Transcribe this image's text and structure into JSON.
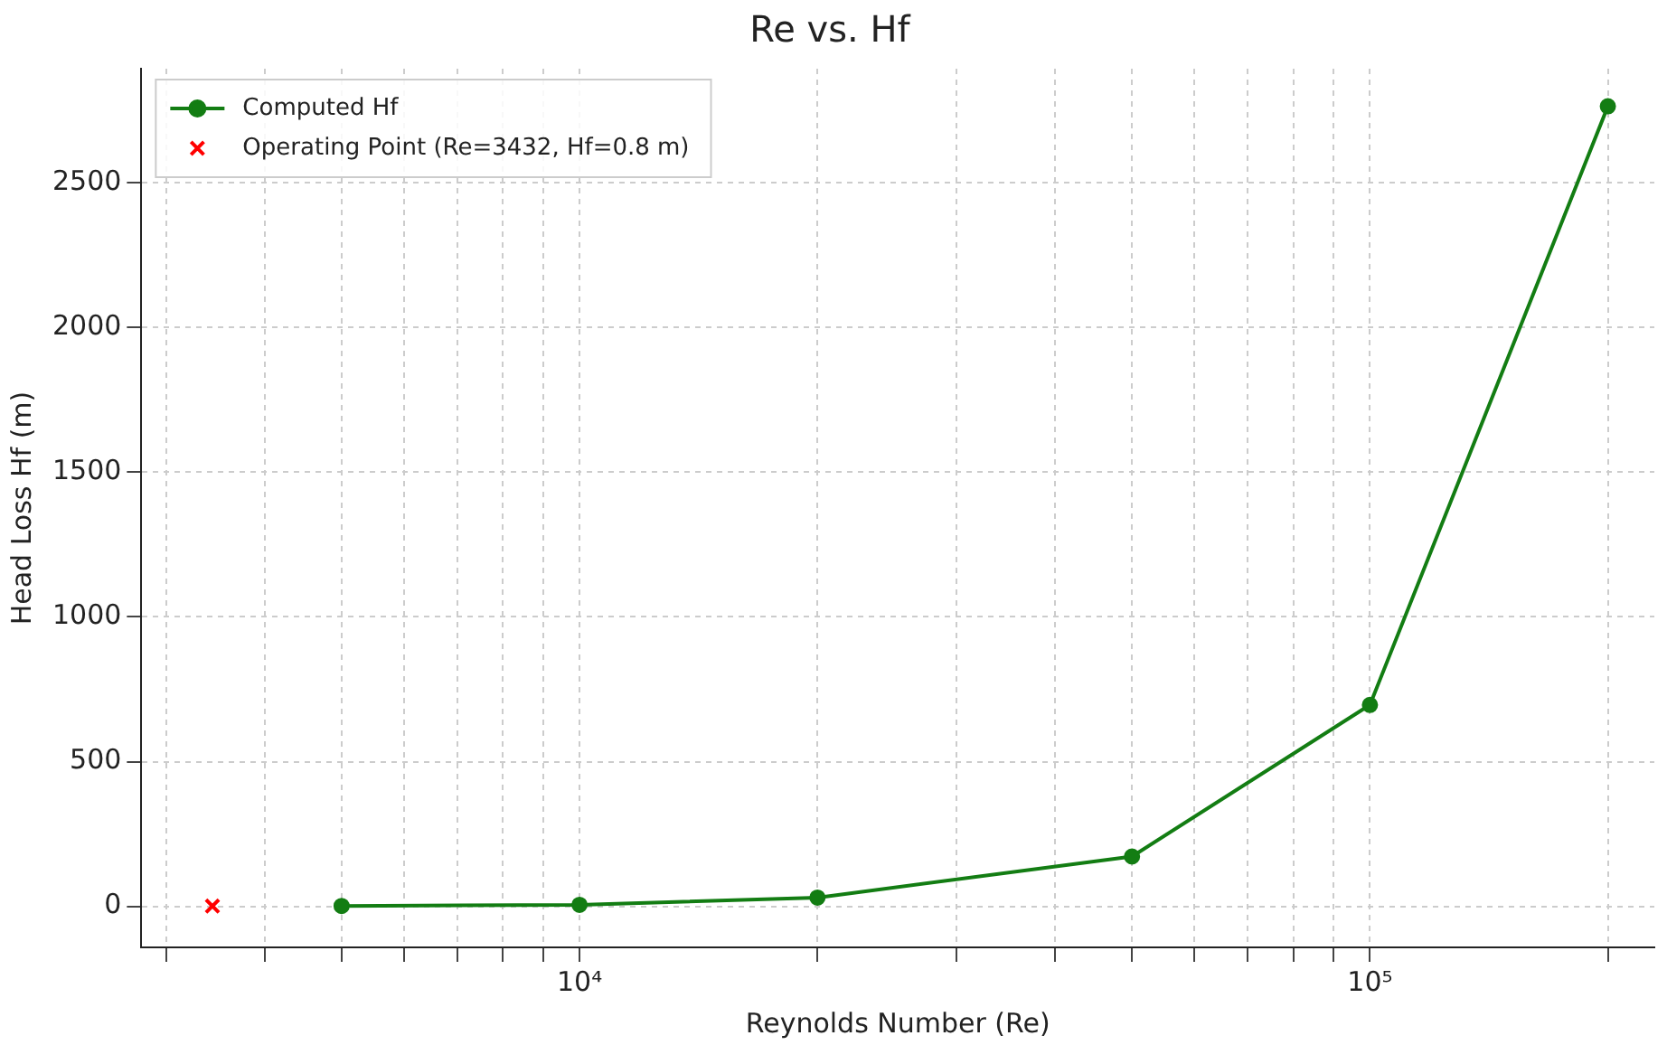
{
  "chart_data": {
    "type": "line",
    "title": "Re vs. Hf",
    "xlabel": "Reynolds Number (Re)",
    "ylabel": "Head Loss Hf (m)",
    "log": "x",
    "xlim": [
      2790,
      229000
    ],
    "xticks": [
      {
        "value": 3000,
        "label": null
      },
      {
        "value": 4000,
        "label": null
      },
      {
        "value": 5000,
        "label": null
      },
      {
        "value": 6000,
        "label": null
      },
      {
        "value": 7000,
        "label": null
      },
      {
        "value": 8000,
        "label": null
      },
      {
        "value": 9000,
        "label": null
      },
      {
        "value": 10000,
        "label": "10⁴"
      },
      {
        "value": 20000,
        "label": null
      },
      {
        "value": 30000,
        "label": null
      },
      {
        "value": 40000,
        "label": null
      },
      {
        "value": 50000,
        "label": null
      },
      {
        "value": 60000,
        "label": null
      },
      {
        "value": 70000,
        "label": null
      },
      {
        "value": 80000,
        "label": null
      },
      {
        "value": 90000,
        "label": null
      },
      {
        "value": 100000,
        "label": "10⁵"
      },
      {
        "value": 200000,
        "label": null
      }
    ],
    "ylim": [
      -142,
      2895
    ],
    "yticks": [
      0,
      500,
      1000,
      1500,
      2000,
      2500
    ],
    "grid": true,
    "legend": "top left",
    "series": [
      {
        "name": "Computed Hf",
        "color": "#137d13",
        "marker": "circle",
        "line_style": "solid",
        "x": [
          5000,
          10000,
          20000,
          50000,
          100000,
          200000
        ],
        "values": [
          1,
          5,
          30,
          172,
          696,
          2765
        ]
      },
      {
        "name": "Operating Point (Re=3432, Hf=0.8 m)",
        "type": "scatter",
        "color": "#ff0000",
        "marker": "cross",
        "x": [
          3432
        ],
        "values": [
          0.8
        ]
      }
    ]
  }
}
